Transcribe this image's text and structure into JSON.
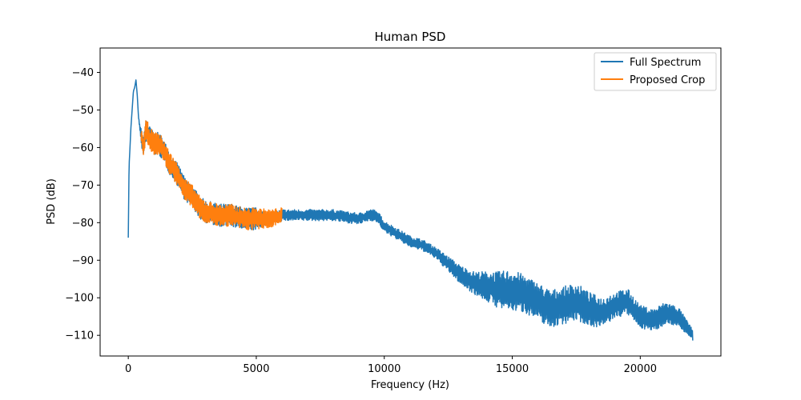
{
  "chart_data": {
    "type": "line",
    "title": "Human PSD",
    "xlabel": "Frequency (Hz)",
    "ylabel": "PSD (dB)",
    "xlim": [
      -1100,
      23150
    ],
    "ylim": [
      -115.5,
      -33.5
    ],
    "xticks": [
      0,
      5000,
      10000,
      15000,
      20000
    ],
    "xtick_labels": [
      "0",
      "5000",
      "10000",
      "15000",
      "20000"
    ],
    "yticks": [
      -110,
      -100,
      -90,
      -80,
      -70,
      -60,
      -50,
      -40
    ],
    "ytick_labels": [
      "−110",
      "−100",
      "−90",
      "−80",
      "−70",
      "−60",
      "−50",
      "−40"
    ],
    "grid": false,
    "legend_position": "upper right",
    "series": [
      {
        "name": "Full Spectrum",
        "color": "#1f77b4",
        "x": [
          0,
          30,
          60,
          100,
          150,
          200,
          250,
          300,
          350,
          400,
          500,
          600,
          700,
          800,
          1000,
          1200,
          1400,
          1600,
          1800,
          2000,
          2200,
          2500,
          2800,
          3000,
          3500,
          4000,
          4500,
          5000,
          5500,
          6000,
          6500,
          7000,
          7500,
          8000,
          8500,
          9000,
          9400,
          9600,
          9800,
          10000,
          10500,
          11000,
          11500,
          12000,
          12500,
          13000,
          13500,
          14000,
          14500,
          15000,
          15500,
          16000,
          16500,
          17000,
          17500,
          18000,
          18500,
          19000,
          19500,
          20000,
          20500,
          21000,
          21500,
          22050
        ],
        "y": [
          -84,
          -65,
          -61,
          -55,
          -50,
          -45,
          -44,
          -42,
          -46,
          -52,
          -57,
          -60,
          -55,
          -57,
          -59,
          -59,
          -61,
          -64,
          -66,
          -68,
          -71,
          -73,
          -76,
          -77,
          -78,
          -78,
          -79,
          -79,
          -79,
          -78,
          -78,
          -78,
          -78,
          -78,
          -78.5,
          -79,
          -78,
          -78,
          -79,
          -81,
          -83,
          -85,
          -86,
          -88,
          -91,
          -94,
          -96,
          -97,
          -98,
          -98,
          -99,
          -101,
          -103,
          -102,
          -101,
          -103,
          -104,
          -102,
          -101,
          -105,
          -106,
          -104,
          -105,
          -110
        ],
        "band": [
          0,
          0,
          0,
          0,
          0,
          0,
          0,
          0,
          0,
          0,
          2,
          3,
          3,
          3,
          3,
          3,
          3,
          3,
          3,
          3,
          3,
          3,
          3,
          3,
          3,
          3,
          3,
          3,
          1.5,
          1.5,
          1.5,
          1.5,
          1.5,
          1.5,
          1.5,
          1.5,
          1.5,
          1.5,
          1.5,
          1.5,
          1.5,
          1.5,
          1.5,
          1.5,
          2,
          2.5,
          3,
          4,
          5,
          5.5,
          5,
          5,
          5,
          5,
          5,
          4.5,
          4,
          3.5,
          3.5,
          3,
          3,
          3,
          2.5,
          1.5
        ]
      },
      {
        "name": "Proposed Crop",
        "color": "#ff7f0e",
        "x": [
          500,
          600,
          700,
          800,
          1000,
          1200,
          1400,
          1600,
          1800,
          2000,
          2200,
          2500,
          2800,
          3000,
          3500,
          4000,
          4500,
          5000,
          5500,
          6000
        ],
        "y": [
          -57,
          -60,
          -55,
          -57,
          -59,
          -59,
          -61,
          -64,
          -66,
          -68,
          -71,
          -73,
          -76,
          -77,
          -78,
          -78,
          -79,
          -79,
          -79,
          -78
        ],
        "band": [
          2,
          3,
          3,
          3,
          3,
          3,
          3,
          3,
          3,
          3,
          3,
          3,
          3,
          3,
          3,
          3,
          3,
          3,
          2.5,
          2
        ]
      }
    ]
  }
}
